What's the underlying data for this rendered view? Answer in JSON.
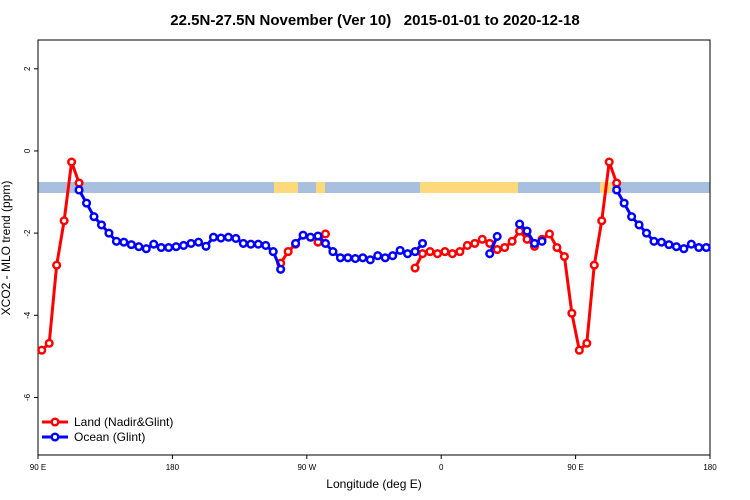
{
  "chart_data": {
    "type": "line",
    "title": "22.5N-27.5N November (Ver 10)   2015-01-01 to 2020-12-18",
    "xlabel": "Longitude (deg E)",
    "ylabel": "XCO2 - MLO trend (ppm)",
    "xlim": [
      90,
      540
    ],
    "ylim": [
      -7.4,
      2.7
    ],
    "xticks": [
      {
        "value": 90,
        "label": "90 E"
      },
      180,
      {
        "value": 270,
        "label": "90 W"
      },
      {
        "value": 360,
        "label": "0"
      },
      {
        "value": 450,
        "label": "90 E"
      },
      {
        "value": 540,
        "label": "180"
      }
    ],
    "yticks": [
      2,
      0,
      -2,
      -4,
      -6
    ],
    "grid": false,
    "legend": "bottomleft",
    "x": [
      92.5,
      97.5,
      102.5,
      107.5,
      112.5,
      117.5,
      122.5,
      127.5,
      132.5,
      137.5,
      142.5,
      147.5,
      152.5,
      157.5,
      162.5,
      167.5,
      172.5,
      177.5,
      182.5,
      187.5,
      192.5,
      197.5,
      202.5,
      207.5,
      212.5,
      217.5,
      222.5,
      227.5,
      232.5,
      237.5,
      242.5,
      247.5,
      252.5,
      257.5,
      262.5,
      267.5,
      272.5,
      277.5,
      282.5,
      287.5,
      292.5,
      297.5,
      302.5,
      307.5,
      312.5,
      317.5,
      322.5,
      327.5,
      332.5,
      337.5,
      342.5,
      347.5,
      352.5,
      357.5,
      362.5,
      367.5,
      372.5,
      377.5,
      382.5,
      387.5,
      392.5,
      397.5,
      402.5,
      407.5,
      412.5,
      417.5,
      422.5,
      427.5,
      432.5,
      437.5,
      442.5,
      447.5,
      452.5,
      457.5,
      462.5,
      467.5,
      472.5,
      477.5,
      482.5,
      487.5,
      492.5,
      497.5,
      502.5,
      507.5,
      512.5,
      517.5,
      522.5,
      527.5,
      532.5,
      537.5
    ],
    "series": [
      {
        "name": "Land (Nadir&Glint)",
        "color": "#ff0000",
        "values": [
          -4.85,
          -4.68,
          -2.78,
          -1.7,
          -0.27,
          -0.78,
          null,
          null,
          null,
          null,
          null,
          null,
          null,
          null,
          null,
          null,
          null,
          null,
          null,
          null,
          null,
          null,
          null,
          null,
          null,
          null,
          null,
          null,
          null,
          null,
          null,
          null,
          -2.73,
          -2.45,
          -2.27,
          null,
          null,
          -2.22,
          -2.02,
          null,
          null,
          null,
          null,
          null,
          null,
          null,
          null,
          null,
          null,
          null,
          -2.85,
          -2.5,
          -2.45,
          -2.5,
          -2.45,
          -2.5,
          -2.45,
          -2.3,
          -2.25,
          -2.15,
          -2.25,
          -2.4,
          -2.35,
          -2.2,
          -1.95,
          -2.15,
          -2.32,
          -2.15,
          -2.02,
          -2.35,
          -2.57,
          -3.95,
          -4.85,
          -4.68,
          -2.78,
          -1.7,
          -0.27,
          -0.78,
          null,
          null,
          null,
          null,
          null,
          null,
          null,
          null,
          null,
          null,
          null,
          null
        ]
      },
      {
        "name": "Ocean (Glint)",
        "color": "#0000ff",
        "values": [
          null,
          null,
          null,
          null,
          null,
          -0.95,
          -1.27,
          -1.6,
          -1.8,
          -2.0,
          -2.2,
          -2.22,
          -2.28,
          -2.33,
          -2.38,
          -2.27,
          -2.35,
          -2.35,
          -2.33,
          -2.3,
          -2.25,
          -2.22,
          -2.32,
          -2.1,
          -2.12,
          -2.1,
          -2.13,
          -2.25,
          -2.27,
          -2.27,
          -2.3,
          -2.45,
          -2.88,
          null,
          -2.25,
          -2.05,
          -2.1,
          -2.07,
          -2.25,
          -2.45,
          -2.6,
          -2.6,
          -2.62,
          -2.6,
          -2.65,
          -2.55,
          -2.6,
          -2.55,
          -2.42,
          -2.5,
          -2.45,
          -2.25,
          null,
          null,
          null,
          null,
          null,
          null,
          null,
          null,
          -2.5,
          -2.08,
          null,
          null,
          -1.78,
          -1.95,
          -2.25,
          -2.2,
          null,
          null,
          null,
          null,
          null,
          null,
          null,
          null,
          null,
          -0.95,
          -1.27,
          -1.6,
          -1.8,
          -2.0,
          -2.2,
          -2.22,
          -2.28,
          -2.33,
          -2.38,
          -2.27,
          -2.35,
          -2.35
        ]
      }
    ]
  }
}
